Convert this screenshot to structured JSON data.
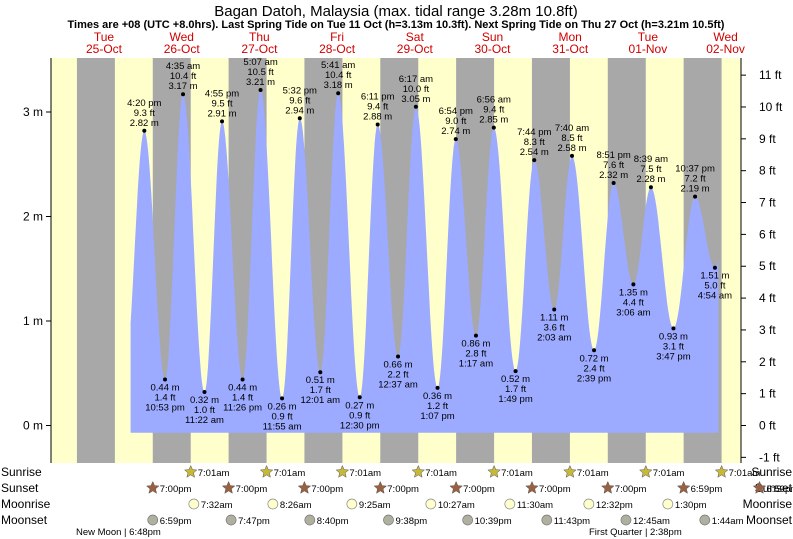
{
  "chart_data": {
    "type": "area",
    "title": "Bagan Datoh, Malaysia (max. tidal range 3.28m 10.8ft)",
    "subtitle": "Times are +08 (UTC +8.0hrs). Last Spring Tide on Tue 11 Oct (h=3.13m 10.3ft). Next Spring Tide on Thu 27 Oct (h=3.21m 10.5ft)",
    "days": [
      {
        "weekday": "Tue",
        "date": "25-Oct"
      },
      {
        "weekday": "Wed",
        "date": "26-Oct"
      },
      {
        "weekday": "Thu",
        "date": "27-Oct"
      },
      {
        "weekday": "Fri",
        "date": "28-Oct"
      },
      {
        "weekday": "Sat",
        "date": "29-Oct"
      },
      {
        "weekday": "Sun",
        "date": "30-Oct"
      },
      {
        "weekday": "Mon",
        "date": "31-Oct"
      },
      {
        "weekday": "Tue",
        "date": "01-Nov"
      },
      {
        "weekday": "Wed",
        "date": "02-Nov"
      }
    ],
    "y_left_ticks": [
      "0 m",
      "1 m",
      "2 m",
      "3 m"
    ],
    "y_right_ticks": [
      "-1 ft",
      "0 ft",
      "1 ft",
      "2 ft",
      "3 ft",
      "4 ft",
      "5 ft",
      "6 ft",
      "7 ft",
      "8 ft",
      "9 ft",
      "10 ft",
      "11 ft"
    ],
    "ylim_m": [
      -0.22,
      3.55
    ],
    "tides": [
      {
        "t": 16.33,
        "m": "2.82 m",
        "ft": "9.3 ft",
        "time": "4:20 pm",
        "h": 2.82,
        "type": "high"
      },
      {
        "t": 22.88,
        "m": "0.44 m",
        "ft": "1.4 ft",
        "time": "10:53 pm",
        "h": 0.44,
        "type": "low"
      },
      {
        "t": 28.58,
        "m": "3.17 m",
        "ft": "10.4 ft",
        "time": "4:35 am",
        "h": 3.17,
        "type": "high"
      },
      {
        "t": 35.37,
        "m": "0.32 m",
        "ft": "1.0 ft",
        "time": "11:22 am",
        "h": 0.32,
        "type": "low"
      },
      {
        "t": 40.92,
        "m": "2.91 m",
        "ft": "9.5 ft",
        "time": "4:55 pm",
        "h": 2.91,
        "type": "high"
      },
      {
        "t": 47.43,
        "m": "0.44 m",
        "ft": "1.4 ft",
        "time": "11:26 pm",
        "h": 0.44,
        "type": "low"
      },
      {
        "t": 53.12,
        "m": "3.21 m",
        "ft": "10.5 ft",
        "time": "5:07 am",
        "h": 3.21,
        "type": "high"
      },
      {
        "t": 59.92,
        "m": "0.26 m",
        "ft": "0.9 ft",
        "time": "11:55 am",
        "h": 0.26,
        "type": "low"
      },
      {
        "t": 65.53,
        "m": "2.94 m",
        "ft": "9.6 ft",
        "time": "5:32 pm",
        "h": 2.94,
        "type": "high"
      },
      {
        "t": 72.02,
        "m": "0.51 m",
        "ft": "1.7 ft",
        "time": "12:01 am",
        "h": 0.51,
        "type": "low"
      },
      {
        "t": 77.68,
        "m": "3.18 m",
        "ft": "10.4 ft",
        "time": "5:41 am",
        "h": 3.18,
        "type": "high"
      },
      {
        "t": 84.5,
        "m": "0.27 m",
        "ft": "0.9 ft",
        "time": "12:30 pm",
        "h": 0.27,
        "type": "low"
      },
      {
        "t": 90.18,
        "m": "2.88 m",
        "ft": "9.4 ft",
        "time": "6:11 pm",
        "h": 2.88,
        "type": "high"
      },
      {
        "t": 96.62,
        "m": "0.66 m",
        "ft": "2.2 ft",
        "time": "12:37 am",
        "h": 0.66,
        "type": "low"
      },
      {
        "t": 102.28,
        "m": "3.05 m",
        "ft": "10.0 ft",
        "time": "6:17 am",
        "h": 3.05,
        "type": "high"
      },
      {
        "t": 109.12,
        "m": "0.36 m",
        "ft": "1.2 ft",
        "time": "1:07 pm",
        "h": 0.36,
        "type": "low"
      },
      {
        "t": 114.9,
        "m": "2.74 m",
        "ft": "9.0 ft",
        "time": "6:54 pm",
        "h": 2.74,
        "type": "high"
      },
      {
        "t": 121.28,
        "m": "0.86 m",
        "ft": "2.8 ft",
        "time": "1:17 am",
        "h": 0.86,
        "type": "low"
      },
      {
        "t": 126.93,
        "m": "2.85 m",
        "ft": "9.4 ft",
        "time": "6:56 am",
        "h": 2.85,
        "type": "high"
      },
      {
        "t": 133.82,
        "m": "0.52 m",
        "ft": "1.7 ft",
        "time": "1:49 pm",
        "h": 0.52,
        "type": "low"
      },
      {
        "t": 139.73,
        "m": "2.54 m",
        "ft": "8.3 ft",
        "time": "7:44 pm",
        "h": 2.54,
        "type": "high"
      },
      {
        "t": 146.05,
        "m": "1.11 m",
        "ft": "3.6 ft",
        "time": "2:03 am",
        "h": 1.11,
        "type": "low"
      },
      {
        "t": 151.67,
        "m": "2.58 m",
        "ft": "8.5 ft",
        "time": "7:40 am",
        "h": 2.58,
        "type": "high"
      },
      {
        "t": 158.65,
        "m": "0.72 m",
        "ft": "2.4 ft",
        "time": "2:39 pm",
        "h": 0.72,
        "type": "low"
      },
      {
        "t": 164.85,
        "m": "2.32 m",
        "ft": "7.6 ft",
        "time": "8:51 pm",
        "h": 2.32,
        "type": "high"
      },
      {
        "t": 171.1,
        "m": "1.35 m",
        "ft": "4.4 ft",
        "time": "3:06 am",
        "h": 1.35,
        "type": "low"
      },
      {
        "t": 176.65,
        "m": "2.28 m",
        "ft": "7.5 ft",
        "time": "8:39 am",
        "h": 2.28,
        "type": "high"
      },
      {
        "t": 183.78,
        "m": "0.93 m",
        "ft": "3.1 ft",
        "time": "3:47 pm",
        "h": 0.93,
        "type": "low"
      },
      {
        "t": 190.62,
        "m": "2.19 m",
        "ft": "7.2 ft",
        "time": "10:37 pm",
        "h": 2.19,
        "type": "high"
      },
      {
        "t": 196.9,
        "m": "1.51 m",
        "ft": "5.0 ft",
        "time": "4:54 am",
        "h": 1.51,
        "type": "low"
      }
    ],
    "sunrise": [
      {
        "d": 1,
        "time": "7:01am"
      },
      {
        "d": 2,
        "time": "7:01am"
      },
      {
        "d": 3,
        "time": "7:01am"
      },
      {
        "d": 4,
        "time": "7:01am"
      },
      {
        "d": 5,
        "time": "7:01am"
      },
      {
        "d": 6,
        "time": "7:01am"
      },
      {
        "d": 7,
        "time": "7:01am"
      },
      {
        "d": 8,
        "time": "7:01am"
      }
    ],
    "sunset": [
      {
        "d": 0,
        "time": "7:00pm"
      },
      {
        "d": 1,
        "time": "7:00pm"
      },
      {
        "d": 2,
        "time": "7:00pm"
      },
      {
        "d": 3,
        "time": "7:00pm"
      },
      {
        "d": 4,
        "time": "7:00pm"
      },
      {
        "d": 5,
        "time": "7:00pm"
      },
      {
        "d": 6,
        "time": "7:00pm"
      },
      {
        "d": 7,
        "time": "6:59pm"
      },
      {
        "d": 8,
        "time": "6:59pm"
      }
    ],
    "moonrise": [
      {
        "d": 1,
        "time": "7:32am"
      },
      {
        "d": 2,
        "time": "8:26am"
      },
      {
        "d": 3,
        "time": "9:25am"
      },
      {
        "d": 4,
        "time": "10:27am"
      },
      {
        "d": 5,
        "time": "11:30am"
      },
      {
        "d": 6,
        "time": "12:32pm"
      },
      {
        "d": 7,
        "time": "1:30pm"
      }
    ],
    "moonset": [
      {
        "d": 0,
        "time": "6:59pm"
      },
      {
        "d": 1,
        "time": "7:47pm"
      },
      {
        "d": 2,
        "time": "8:40pm"
      },
      {
        "d": 3,
        "time": "9:38pm"
      },
      {
        "d": 4,
        "time": "10:39pm"
      },
      {
        "d": 5,
        "time": "11:43pm"
      },
      {
        "d": 7,
        "time": "12:45am"
      },
      {
        "d": 8,
        "time": "1:44am"
      }
    ],
    "row_labels": [
      "Sunrise",
      "Sunset",
      "Moonrise",
      "Moonset"
    ],
    "moon_phases": [
      {
        "text": "New Moon | 6:48pm",
        "d": 0
      },
      {
        "text": "First Quarter | 2:38pm",
        "d": 7
      }
    ],
    "colors": {
      "day": "#ffffcc",
      "night": "#a8a8a8",
      "water": "#9caaff",
      "day_label": "#d00000",
      "sun": "#c8b838",
      "sunset": "#9a6040",
      "moonrise": "#ffffcc",
      "moonset": "#b0b0a0"
    }
  }
}
